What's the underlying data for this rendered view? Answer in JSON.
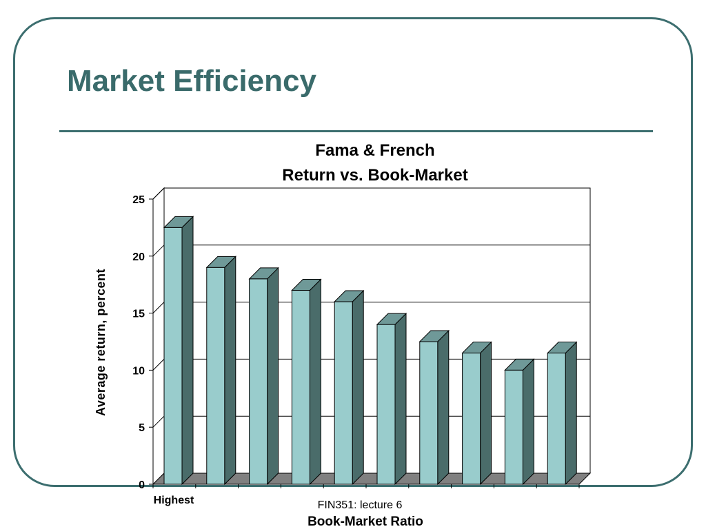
{
  "slide": {
    "title": "Market Efficiency",
    "footer": "FIN351: lecture 6"
  },
  "colors": {
    "frame": "#3c6e6f",
    "title": "#3a6b6b",
    "bar_front": "#99cccc",
    "bar_side": "#4a6c6a",
    "bar_top": "#6f9998",
    "floor": "#808080"
  },
  "chart_data": {
    "type": "bar",
    "title_lines": [
      "Fama & French",
      "Return vs. Book-Market"
    ],
    "xlabel": "Book-Market Ratio",
    "ylabel": "Average return, percent",
    "categories": [
      "Highest",
      "",
      "",
      "",
      "",
      "",
      "",
      "",
      "",
      ""
    ],
    "values": [
      22.5,
      19,
      18,
      17,
      16,
      14,
      12.5,
      11.5,
      10,
      11.5
    ],
    "ylim": [
      0,
      25
    ],
    "yticks": [
      0,
      5,
      10,
      15,
      20,
      25
    ],
    "grid": true,
    "style": "3d"
  }
}
